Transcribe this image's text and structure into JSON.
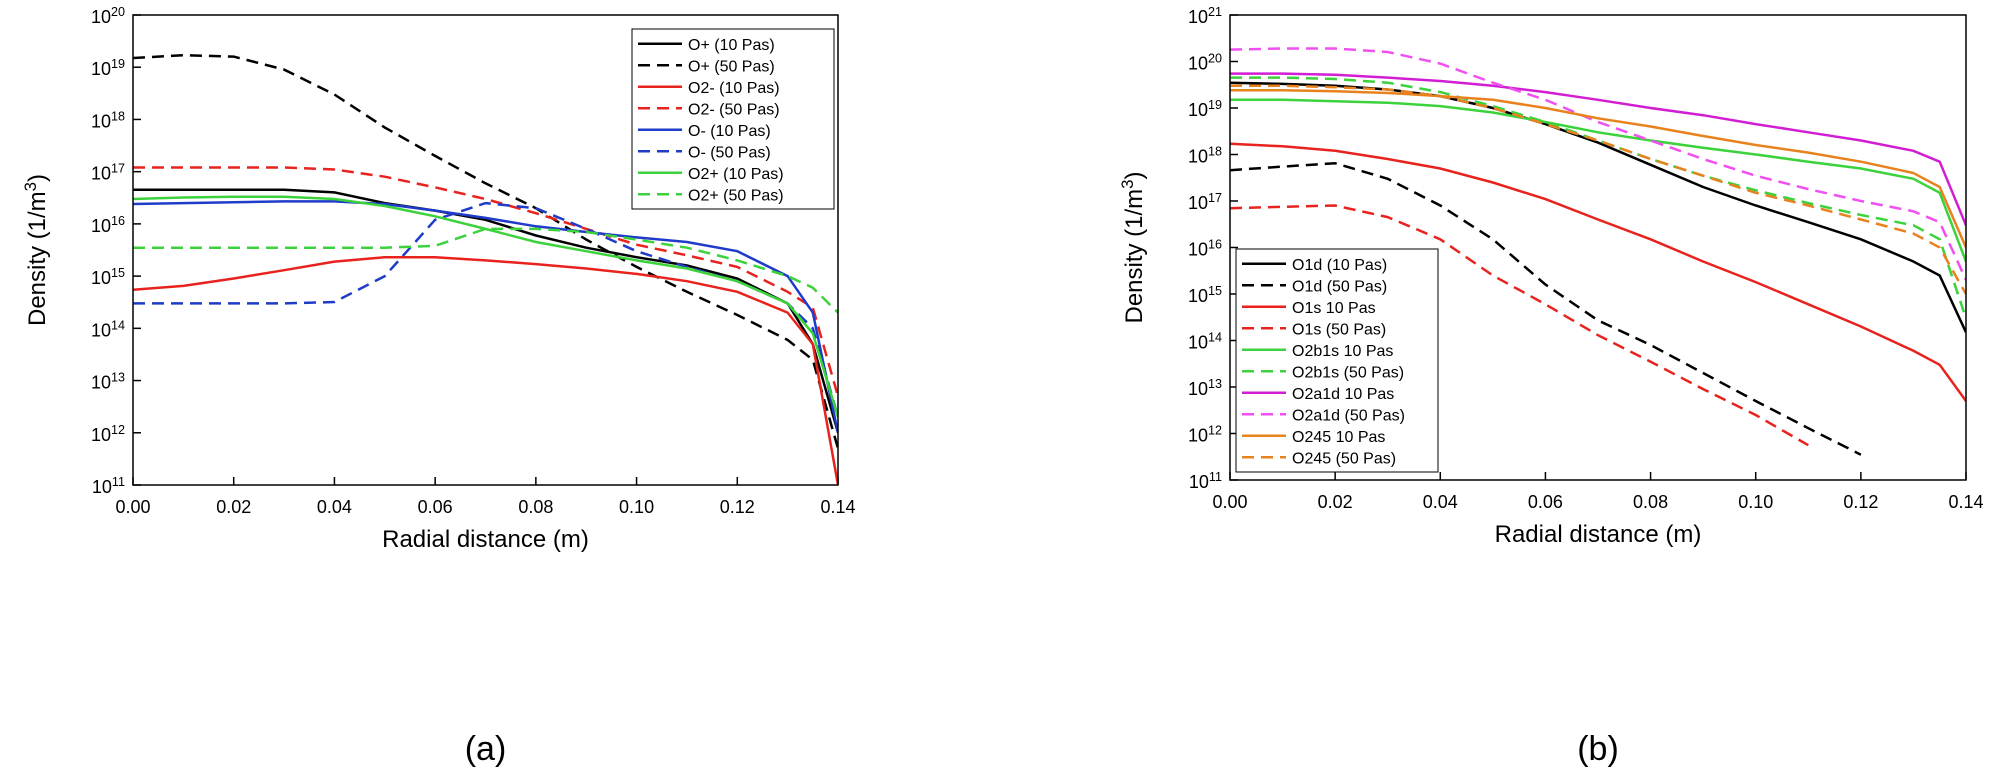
{
  "chart_data": [
    {
      "type": "line",
      "label": "(a)",
      "x_label": "Radial distance (m)",
      "y_label": "Density (1/m^3)",
      "log_y": true,
      "legend": "upper right",
      "xlim": [
        0,
        0.14
      ],
      "ylim": [
        100000000000.0,
        1e+20
      ],
      "xticks": [
        {
          "value": 0,
          "label": "0.00"
        },
        {
          "value": 0.02,
          "label": "0.02"
        },
        {
          "value": 0.04,
          "label": "0.04"
        },
        {
          "value": 0.06,
          "label": "0.06"
        },
        {
          "value": 0.08,
          "label": "0.08"
        },
        {
          "value": 0.1,
          "label": "0.10"
        },
        {
          "value": 0.12,
          "label": "0.12"
        },
        {
          "value": 0.14,
          "label": "0.14"
        }
      ],
      "yticks": [
        {
          "value": 100000000000.0,
          "label": "10^11"
        },
        {
          "value": 1000000000000.0,
          "label": "10^12"
        },
        {
          "value": 10000000000000.0,
          "label": "10^13"
        },
        {
          "value": 100000000000000.0,
          "label": "10^14"
        },
        {
          "value": 1000000000000000.0,
          "label": "10^15"
        },
        {
          "value": 1e+16,
          "label": "10^16"
        },
        {
          "value": 1e+17,
          "label": "10^17"
        },
        {
          "value": 1e+18,
          "label": "10^18"
        },
        {
          "value": 1e+19,
          "label": "10^19"
        },
        {
          "value": 1e+20,
          "label": "10^20"
        }
      ],
      "x": [
        0,
        0.01,
        0.02,
        0.03,
        0.04,
        0.05,
        0.06,
        0.07,
        0.08,
        0.09,
        0.1,
        0.11,
        0.12,
        0.13,
        0.135,
        0.14
      ],
      "series": [
        {
          "name": "O+ (10 Pas)",
          "color": "#000000",
          "dash": false,
          "values": [
            4.5e+16,
            4.5e+16,
            4.5e+16,
            4.5e+16,
            4e+16,
            2.5e+16,
            1.8e+16,
            1.2e+16,
            6000000000000000.0,
            3500000000000000.0,
            2300000000000000.0,
            1600000000000000.0,
            900000000000000.0,
            300000000000000.0,
            50000000000000.0,
            1000000000000.0
          ]
        },
        {
          "name": "O+ (50 Pas)",
          "color": "#000000",
          "dash": true,
          "values": [
            1.5e+19,
            1.7e+19,
            1.6e+19,
            9e+18,
            3e+18,
            7e+17,
            2e+17,
            6e+16,
            2e+16,
            5000000000000000.0,
            1500000000000000.0,
            500000000000000.0,
            180000000000000.0,
            60000000000000.0,
            25000000000000.0,
            500000000000.0
          ]
        },
        {
          "name": "O2- (10 Pas)",
          "color": "#e8231e",
          "dash": false,
          "values": [
            550000000000000.0,
            650000000000000.0,
            900000000000000.0,
            1300000000000000.0,
            1900000000000000.0,
            2300000000000000.0,
            2300000000000000.0,
            2000000000000000.0,
            1700000000000000.0,
            1400000000000000.0,
            1100000000000000.0,
            800000000000000.0,
            500000000000000.0,
            200000000000000.0,
            50000000000000.0,
            100000000000.0
          ]
        },
        {
          "name": "O2- (50 Pas)",
          "color": "#e8231e",
          "dash": true,
          "values": [
            1.2e+17,
            1.2e+17,
            1.2e+17,
            1.2e+17,
            1.1e+17,
            8e+16,
            5e+16,
            3e+16,
            1.6e+16,
            8000000000000000.0,
            4000000000000000.0,
            2500000000000000.0,
            1500000000000000.0,
            500000000000000.0,
            250000000000000.0,
            5000000000000.0
          ]
        },
        {
          "name": "O- (10 Pas)",
          "color": "#1e3cc8",
          "dash": false,
          "values": [
            2.4e+16,
            2.5e+16,
            2.6e+16,
            2.7e+16,
            2.7e+16,
            2.4e+16,
            1.8e+16,
            1.3e+16,
            9000000000000000.0,
            7000000000000000.0,
            5500000000000000.0,
            4500000000000000.0,
            3000000000000000.0,
            1000000000000000.0,
            200000000000000.0,
            1000000000000.0
          ]
        },
        {
          "name": "O- (50 Pas)",
          "color": "#1e3cc8",
          "dash": true,
          "values": [
            300000000000000.0,
            300000000000000.0,
            300000000000000.0,
            300000000000000.0,
            320000000000000.0,
            1000000000000000.0,
            1.2e+16,
            2.5e+16,
            2e+16,
            8000000000000000.0,
            3000000000000000.0,
            1500000000000000.0,
            800000000000000.0,
            300000000000000.0,
            100000000000000.0,
            2000000000000.0
          ]
        },
        {
          "name": "O2+ (10 Pas)",
          "color": "#3cd23c",
          "dash": false,
          "values": [
            3e+16,
            3.2e+16,
            3.3e+16,
            3.3e+16,
            3e+16,
            2.2e+16,
            1.4e+16,
            8000000000000000.0,
            4500000000000000.0,
            3000000000000000.0,
            2000000000000000.0,
            1400000000000000.0,
            800000000000000.0,
            300000000000000.0,
            80000000000000.0,
            2000000000000.0
          ]
        },
        {
          "name": "O2+ (50 Pas)",
          "color": "#3cd23c",
          "dash": true,
          "values": [
            3500000000000000.0,
            3500000000000000.0,
            3500000000000000.0,
            3500000000000000.0,
            3500000000000000.0,
            3500000000000000.0,
            3800000000000000.0,
            8000000000000000.0,
            8000000000000000.0,
            7000000000000000.0,
            5000000000000000.0,
            3500000000000000.0,
            2000000000000000.0,
            1000000000000000.0,
            600000000000000.0,
            200000000000000.0
          ]
        }
      ]
    },
    {
      "type": "line",
      "label": "(b)",
      "x_label": "Radial distance (m)",
      "y_label": "Density (1/m^3)",
      "log_y": true,
      "legend": "lower left",
      "xlim": [
        0,
        0.14
      ],
      "ylim": [
        100000000000.0,
        1e+21
      ],
      "xticks": [
        {
          "value": 0,
          "label": "0.00"
        },
        {
          "value": 0.02,
          "label": "0.02"
        },
        {
          "value": 0.04,
          "label": "0.04"
        },
        {
          "value": 0.06,
          "label": "0.06"
        },
        {
          "value": 0.08,
          "label": "0.08"
        },
        {
          "value": 0.1,
          "label": "0.10"
        },
        {
          "value": 0.12,
          "label": "0.12"
        },
        {
          "value": 0.14,
          "label": "0.14"
        }
      ],
      "yticks": [
        {
          "value": 100000000000.0,
          "label": "10^11"
        },
        {
          "value": 1000000000000.0,
          "label": "10^12"
        },
        {
          "value": 10000000000000.0,
          "label": "10^13"
        },
        {
          "value": 100000000000000.0,
          "label": "10^14"
        },
        {
          "value": 1000000000000000.0,
          "label": "10^15"
        },
        {
          "value": 1e+16,
          "label": "10^16"
        },
        {
          "value": 1e+17,
          "label": "10^17"
        },
        {
          "value": 1e+18,
          "label": "10^18"
        },
        {
          "value": 1e+19,
          "label": "10^19"
        },
        {
          "value": 1e+20,
          "label": "10^20"
        },
        {
          "value": 1e+21,
          "label": "10^21"
        }
      ],
      "x": [
        0,
        0.01,
        0.02,
        0.03,
        0.04,
        0.05,
        0.06,
        0.07,
        0.08,
        0.09,
        0.1,
        0.11,
        0.12,
        0.13,
        0.135,
        0.14
      ],
      "series": [
        {
          "name": "O1d (10 Pas)",
          "color": "#000000",
          "dash": false,
          "values": [
            3.5e+19,
            3.3e+19,
            3e+19,
            2.5e+19,
            1.8e+19,
            1e+19,
            4.5e+18,
            1.8e+18,
            6e+17,
            2e+17,
            8e+16,
            3.5e+16,
            1.5e+16,
            5000000000000000.0,
            2500000000000000.0,
            150000000000000.0
          ]
        },
        {
          "name": "O1d (50 Pas)",
          "color": "#000000",
          "dash": true,
          "values": [
            4.6e+17,
            5.5e+17,
            6.5e+17,
            3e+17,
            8e+16,
            1.5e+16,
            1600000000000000.0,
            270000000000000.0,
            80000000000000.0,
            20000000000000.0,
            5000000000000.0,
            1300000000000.0,
            350000000000.0,
            null,
            null,
            null
          ]
        },
        {
          "name": "O1s 10 Pas",
          "color": "#e8231e",
          "dash": false,
          "values": [
            1.7e+18,
            1.5e+18,
            1.2e+18,
            8e+17,
            5e+17,
            2.5e+17,
            1.1e+17,
            4e+16,
            1.5e+16,
            5000000000000000.0,
            1800000000000000.0,
            600000000000000.0,
            200000000000000.0,
            60000000000000.0,
            30000000000000.0,
            5000000000000.0
          ]
        },
        {
          "name": "O1s (50 Pas)",
          "color": "#e8231e",
          "dash": true,
          "values": [
            7e+16,
            7.5e+16,
            8e+16,
            4.5e+16,
            1.5e+16,
            2500000000000000.0,
            600000000000000.0,
            130000000000000.0,
            35000000000000.0,
            9000000000000.0,
            2500000000000.0,
            560000000000.0,
            null,
            null,
            null,
            null
          ]
        },
        {
          "name": "O2b1s 10 Pas",
          "color": "#3cd23c",
          "dash": false,
          "values": [
            1.5e+19,
            1.5e+19,
            1.4e+19,
            1.3e+19,
            1.1e+19,
            8e+18,
            5e+18,
            3e+18,
            2e+18,
            1.4e+18,
            1e+18,
            7e+17,
            5e+17,
            3e+17,
            1.5e+17,
            5000000000000000.0
          ]
        },
        {
          "name": "O2b1s (50 Pas)",
          "color": "#3cd23c",
          "dash": true,
          "values": [
            4.5e+19,
            4.5e+19,
            4.2e+19,
            3.5e+19,
            2.2e+19,
            1.1e+19,
            5e+18,
            2e+18,
            8e+17,
            3.5e+17,
            1.7e+17,
            9e+16,
            5e+16,
            3e+16,
            1.5e+16,
            300000000000000.0
          ]
        },
        {
          "name": "O2a1d 10 Pas",
          "color": "#d21ed2",
          "dash": false,
          "values": [
            5.5e+19,
            5.5e+19,
            5.2e+19,
            4.5e+19,
            3.8e+19,
            3e+19,
            2.2e+19,
            1.5e+19,
            1e+19,
            7e+18,
            4.5e+18,
            3e+18,
            2e+18,
            1.2e+18,
            7e+17,
            3e+16
          ]
        },
        {
          "name": "O2a1d (50 Pas)",
          "color": "#f050f0",
          "dash": true,
          "values": [
            1.8e+20,
            1.9e+20,
            1.9e+20,
            1.6e+20,
            9e+19,
            3.5e+19,
            1.5e+19,
            5e+18,
            2e+18,
            8e+17,
            3.5e+17,
            1.8e+17,
            1e+17,
            6e+16,
            3.5e+16,
            2000000000000000.0
          ]
        },
        {
          "name": "O245 10 Pas",
          "color": "#e8821e",
          "dash": false,
          "values": [
            2.4e+19,
            2.4e+19,
            2.3e+19,
            2.1e+19,
            1.8e+19,
            1.5e+19,
            1e+19,
            6e+18,
            4e+18,
            2.5e+18,
            1.6e+18,
            1.1e+18,
            7e+17,
            4e+17,
            2e+17,
            1e+16
          ]
        },
        {
          "name": "O245 (50 Pas)",
          "color": "#e8821e",
          "dash": true,
          "values": [
            3e+19,
            3e+19,
            2.8e+19,
            2.5e+19,
            1.8e+19,
            1e+19,
            4.5e+18,
            2e+18,
            8e+17,
            3.5e+17,
            1.5e+17,
            8e+16,
            4e+16,
            2e+16,
            1e+16,
            1000000000000000.0
          ]
        }
      ]
    }
  ]
}
